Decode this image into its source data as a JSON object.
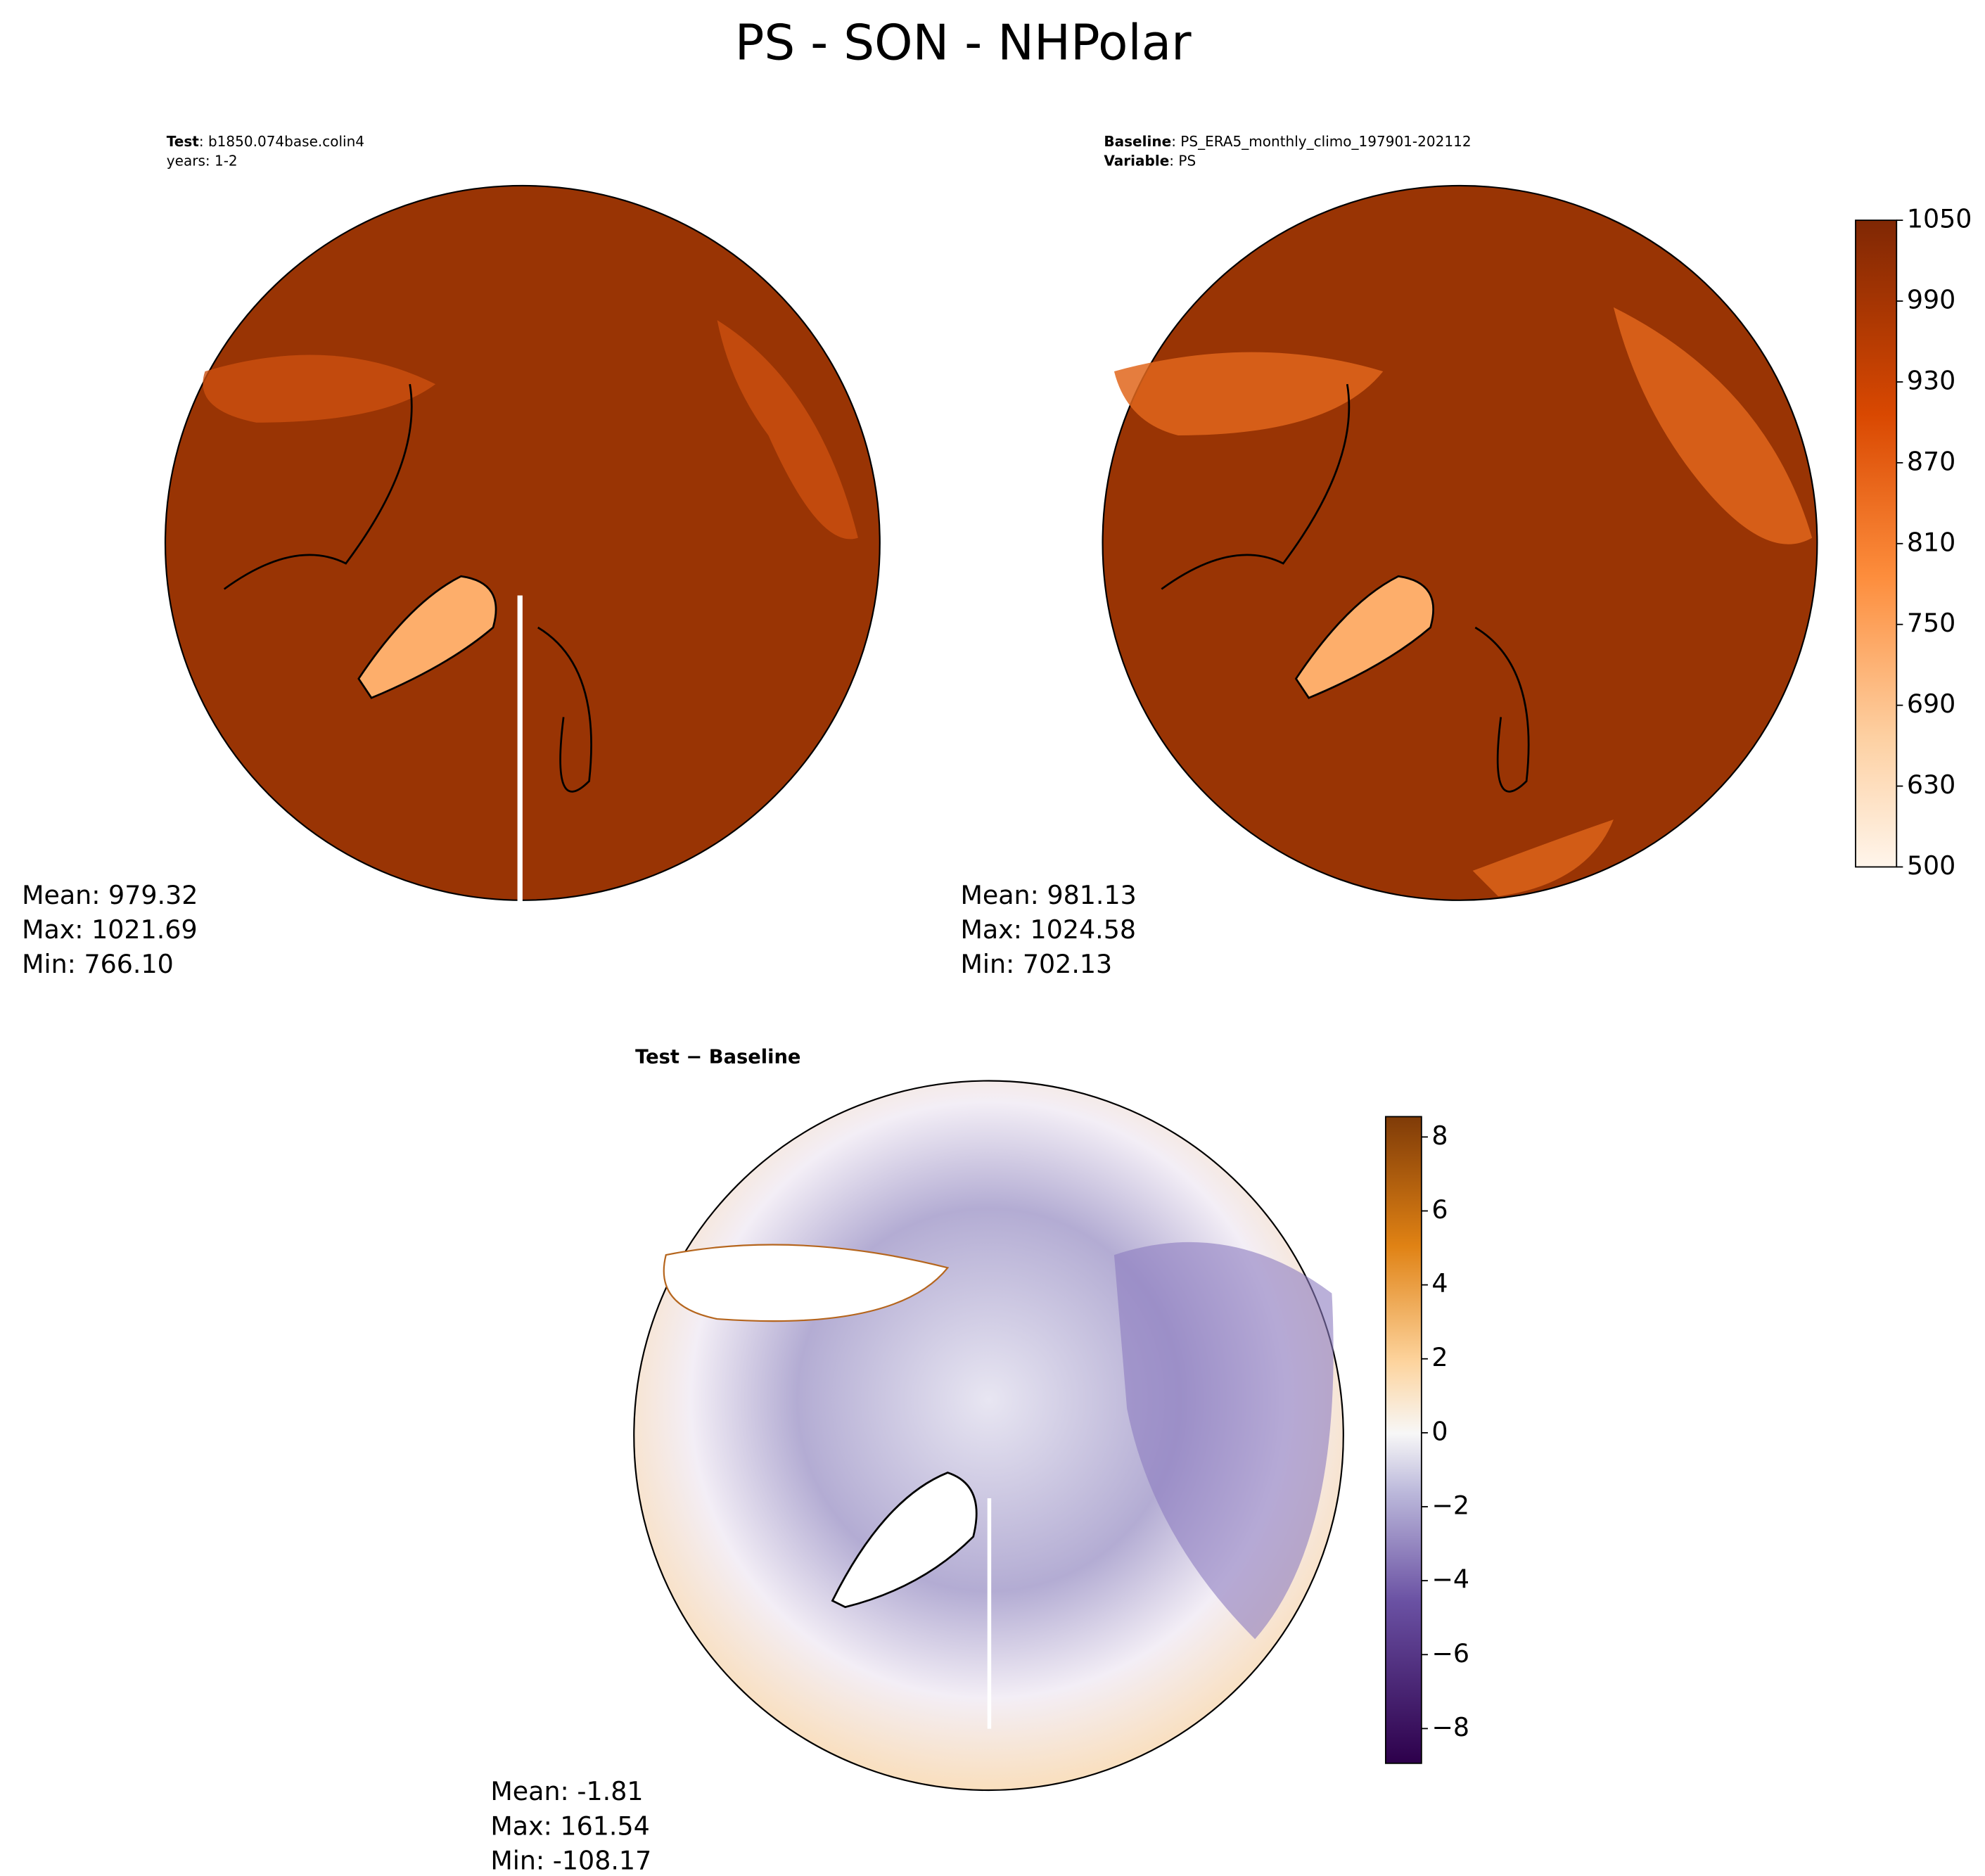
{
  "title": "PS - SON - NHPolar",
  "panels": [
    {
      "header": [
        {
          "key": "Test",
          "text": ": b1850.074base.colin4"
        },
        {
          "key": null,
          "text": "years: 1-2"
        }
      ],
      "stats": [
        "Mean: 979.32",
        "Max: 1021.69",
        "Min: 766.10"
      ]
    },
    {
      "header": [
        {
          "key": "Baseline",
          "text": ": PS_ERA5_monthly_climo_197901-202112"
        },
        {
          "key": "Variable",
          "text": ": PS"
        }
      ],
      "stats": [
        "Mean: 981.13",
        "Max: 1024.58",
        "Min: 702.13"
      ]
    },
    {
      "header": [
        {
          "key": "Test − Baseline",
          "text": null
        }
      ],
      "stats": [
        "Mean: -1.81",
        "Max: 161.54",
        "Min: -108.17"
      ]
    }
  ],
  "colorbars": [
    {
      "ticks": [
        500,
        630,
        690,
        750,
        810,
        870,
        930,
        990,
        1050
      ],
      "spacing": "uniform"
    },
    {
      "ylim": [
        -8.94,
        8.55
      ],
      "ticks": [
        {
          "value": -8,
          "label": "−8"
        },
        {
          "value": -6,
          "label": "−6"
        },
        {
          "value": -4,
          "label": "−4"
        },
        {
          "value": -2,
          "label": "−2"
        },
        0,
        2,
        4,
        6,
        8
      ],
      "spacing": "proportional"
    }
  ]
}
